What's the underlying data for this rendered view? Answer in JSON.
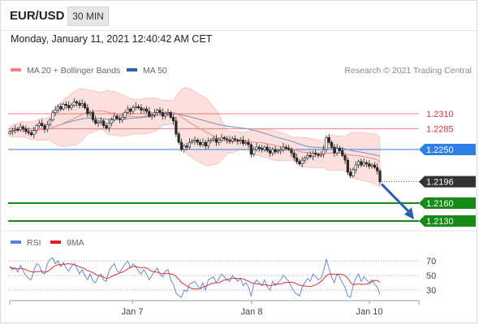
{
  "header": {
    "symbol": "EUR/USD",
    "timeframe": "30 MIN",
    "datetime": "Monday, January 11, 2021 12:40:42 AM CET"
  },
  "chart_data": [
    {
      "type": "candlestick",
      "legend": [
        {
          "label": "MA 20 + Bollinger Bands",
          "color": "#f08080"
        },
        {
          "label": "MA 50",
          "color": "#2e5fa8"
        }
      ],
      "credit": "Research © 2021 Trading Central",
      "levels": [
        {
          "value": 1.231,
          "label": "1.2310",
          "style": "resistance",
          "color": "#e05050"
        },
        {
          "value": 1.2285,
          "label": "1.2285",
          "style": "resistance",
          "color": "#e05050"
        },
        {
          "value": 1.225,
          "label": "1.2250",
          "style": "pivot",
          "color": "#2f7fe8"
        },
        {
          "value": 1.2196,
          "label": "1.2196",
          "style": "last",
          "color": "#333333"
        },
        {
          "value": 1.216,
          "label": "1.2160",
          "style": "support",
          "color": "#178a17"
        },
        {
          "value": 1.213,
          "label": "1.2130",
          "style": "support",
          "color": "#178a17"
        }
      ],
      "x_ticks": [
        "Jan 7",
        "Jan 8",
        "Jan 10"
      ],
      "close": [
        1.228,
        1.2282,
        1.2284,
        1.2283,
        1.2288,
        1.2285,
        1.228,
        1.2278,
        1.2275,
        1.2282,
        1.229,
        1.2294,
        1.229,
        1.2284,
        1.2292,
        1.23,
        1.2312,
        1.2316,
        1.2322,
        1.2318,
        1.2326,
        1.2324,
        1.232,
        1.2324,
        1.233,
        1.2328,
        1.2324,
        1.2327,
        1.232,
        1.231,
        1.2312,
        1.23,
        1.2294,
        1.2296,
        1.2298,
        1.229,
        1.2286,
        1.2294,
        1.23,
        1.2306,
        1.2302,
        1.23,
        1.2304,
        1.2312,
        1.2318,
        1.2314,
        1.232,
        1.2322,
        1.232,
        1.2316,
        1.2318,
        1.2314,
        1.2306,
        1.2308,
        1.2312,
        1.2316,
        1.2312,
        1.2306,
        1.231,
        1.2312,
        1.2304,
        1.2298,
        1.2276,
        1.2262,
        1.225,
        1.2256,
        1.2254,
        1.2262,
        1.2264,
        1.2266,
        1.2262,
        1.2258,
        1.2262,
        1.2256,
        1.2264,
        1.2266,
        1.2268,
        1.2262,
        1.2266,
        1.227,
        1.2268,
        1.2266,
        1.2264,
        1.2268,
        1.2266,
        1.2264,
        1.2266,
        1.226,
        1.2262,
        1.2258,
        1.2242,
        1.225,
        1.2254,
        1.2252,
        1.225,
        1.2254,
        1.2248,
        1.2244,
        1.225,
        1.2246,
        1.2248,
        1.225,
        1.2254,
        1.2252,
        1.225,
        1.2244,
        1.2236,
        1.223,
        1.2226,
        1.2232,
        1.2236,
        1.224,
        1.2238,
        1.2244,
        1.2242,
        1.224,
        1.2242,
        1.225,
        1.227,
        1.2262,
        1.2254,
        1.2244,
        1.2252,
        1.2248,
        1.224,
        1.2232,
        1.2212,
        1.2206,
        1.2216,
        1.2224,
        1.223,
        1.2224,
        1.2228,
        1.2226,
        1.2222,
        1.2224,
        1.222,
        1.2214,
        1.2196
      ],
      "rsi": [
        62,
        58,
        60,
        55,
        64,
        56,
        50,
        46,
        44,
        56,
        66,
        64,
        54,
        52,
        66,
        72,
        74,
        66,
        70,
        62,
        68,
        60,
        56,
        62,
        66,
        60,
        52,
        58,
        50,
        44,
        52,
        42,
        40,
        48,
        52,
        44,
        42,
        56,
        62,
        66,
        56,
        54,
        60,
        66,
        70,
        60,
        66,
        62,
        56,
        52,
        58,
        52,
        44,
        50,
        56,
        60,
        52,
        48,
        56,
        58,
        44,
        38,
        26,
        22,
        20,
        30,
        28,
        38,
        40,
        42,
        36,
        32,
        40,
        30,
        44,
        46,
        48,
        40,
        46,
        52,
        48,
        44,
        42,
        50,
        46,
        42,
        46,
        36,
        40,
        34,
        22,
        38,
        44,
        40,
        36,
        44,
        34,
        30,
        42,
        36,
        40,
        44,
        50,
        46,
        42,
        34,
        28,
        24,
        22,
        34,
        40,
        46,
        42,
        52,
        48,
        44,
        46,
        56,
        72,
        60,
        48,
        40,
        52,
        48,
        40,
        34,
        22,
        20,
        36,
        46,
        52,
        42,
        48,
        44,
        40,
        44,
        38,
        34,
        24
      ],
      "rsi_levels": [
        70,
        50,
        30
      ]
    }
  ]
}
